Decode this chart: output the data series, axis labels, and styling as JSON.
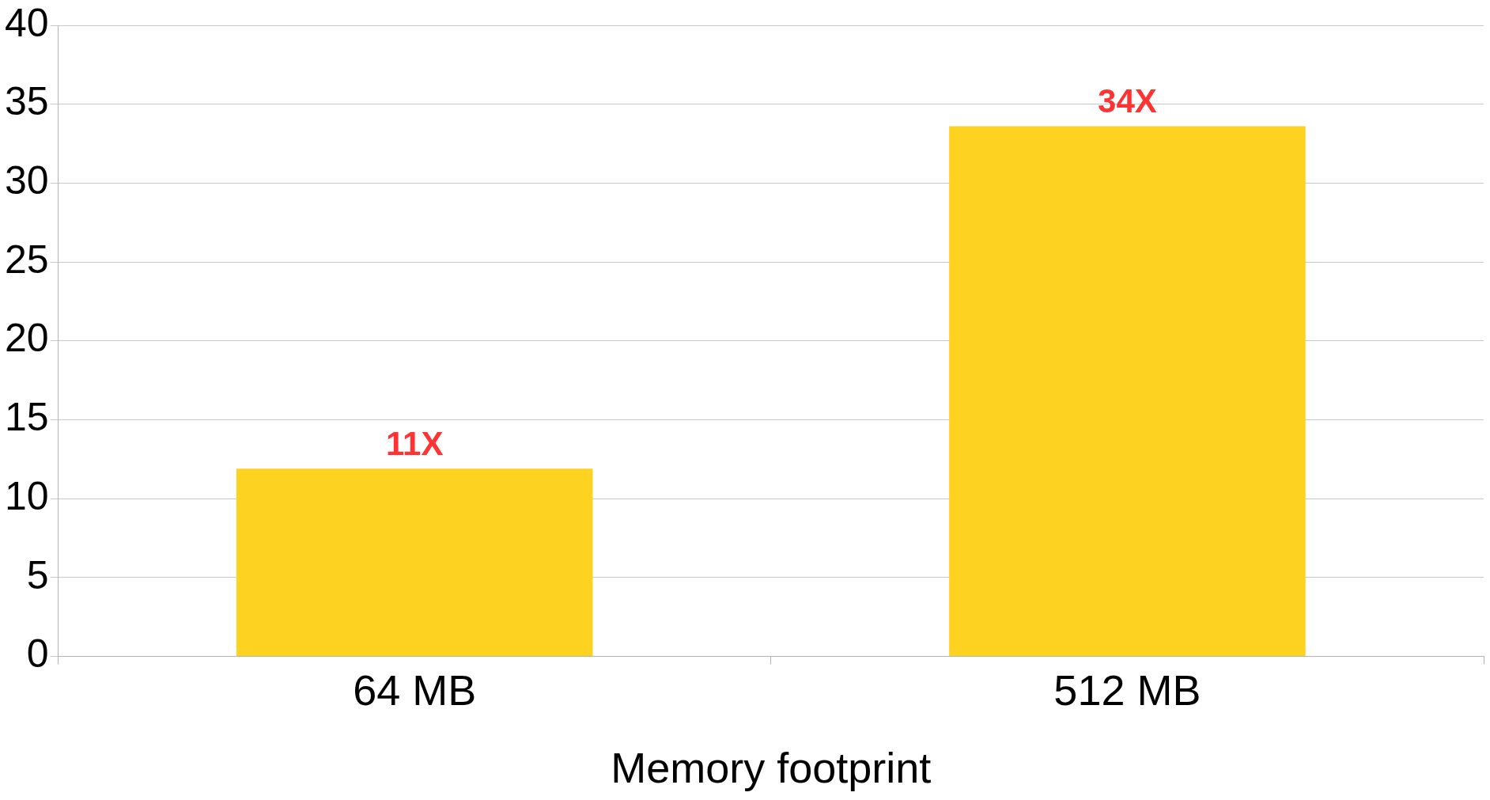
{
  "chart_data": {
    "type": "bar",
    "xlabel": "Memory footprint",
    "categories": [
      "64 MB",
      "512 MB"
    ],
    "values": [
      11.9,
      33.6
    ],
    "annotations": [
      {
        "text": "11X",
        "x": "64 MB",
        "y": 11.9
      },
      {
        "text": "34X",
        "x": "512 MB",
        "y": 33.6
      }
    ],
    "color": "#fdd220",
    "ylim": [
      0,
      40
    ],
    "yticks": [
      0,
      5,
      10,
      15,
      20,
      25,
      30,
      35,
      40
    ],
    "grid": "y"
  }
}
